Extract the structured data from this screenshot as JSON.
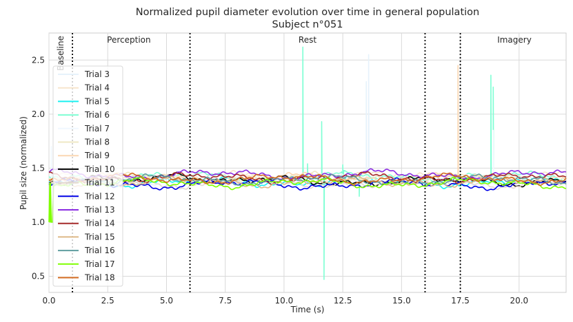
{
  "chart_data": {
    "type": "line",
    "title": "Normalized pupil diameter evolution over time in general population",
    "subtitle": "Subject n°051",
    "xlabel": "Time (s)",
    "ylabel": "Pupil size (normalized)",
    "xlim": [
      0,
      22
    ],
    "ylim": [
      0.35,
      2.75
    ],
    "xticks": [
      0.0,
      2.5,
      5.0,
      7.5,
      10.0,
      12.5,
      15.0,
      17.5,
      20.0
    ],
    "xtick_labels": [
      "0.0",
      "2.5",
      "5.0",
      "7.5",
      "10.0",
      "12.5",
      "15.0",
      "17.5",
      "20.0"
    ],
    "yticks": [
      0.5,
      1.0,
      1.5,
      2.0,
      2.5
    ],
    "ytick_labels": [
      "0.5",
      "1.0",
      "1.5",
      "2.0",
      "2.5"
    ],
    "grid": true,
    "legend_placement": "left",
    "phase_boundaries": [
      1.0,
      6.0,
      16.0,
      17.5
    ],
    "phase_labels": [
      {
        "text": "Baseline",
        "x": 0.5,
        "rotated": true
      },
      {
        "text": "Perception",
        "x": 3.4
      },
      {
        "text": "Rest",
        "x": 11.0
      },
      {
        "text": "Imagery",
        "x": 19.8
      }
    ],
    "series": [
      {
        "name": "Trial 3",
        "color": "#e6f2fb",
        "base": 1.38,
        "offset": 0.3,
        "spikes": [
          [
            13.5,
            2.3
          ],
          [
            13.6,
            2.55
          ]
        ]
      },
      {
        "name": "Trial 4",
        "color": "#f7e5cc",
        "base": 1.42,
        "offset": 1.1,
        "spikes": []
      },
      {
        "name": "Trial 5",
        "color": "#19f0f0",
        "base": 1.37,
        "offset": 2.0,
        "spikes": []
      },
      {
        "name": "Trial 6",
        "color": "#7fffd4",
        "base": 1.42,
        "offset": 2.7,
        "spikes": [
          [
            10.8,
            2.62
          ],
          [
            11.0,
            1.54
          ],
          [
            11.6,
            1.93
          ],
          [
            11.7,
            0.47
          ],
          [
            12.5,
            1.53
          ],
          [
            13.2,
            1.24
          ],
          [
            18.8,
            2.36
          ],
          [
            18.9,
            2.25
          ]
        ]
      },
      {
        "name": "Trial 7",
        "color": "#f0f8ff",
        "base": 1.4,
        "offset": 3.3,
        "spikes": [
          [
            18.9,
            1.85
          ],
          [
            0.1,
            1.7
          ]
        ]
      },
      {
        "name": "Trial 8",
        "color": "#efe8c4",
        "base": 1.41,
        "offset": 4.1,
        "spikes": []
      },
      {
        "name": "Trial 9",
        "color": "#fbd7b2",
        "base": 1.41,
        "offset": 4.9,
        "spikes": [
          [
            17.4,
            2.45
          ]
        ]
      },
      {
        "name": "Trial 10",
        "color": "#000000",
        "base": 1.38,
        "offset": 5.6,
        "spikes": []
      },
      {
        "name": "Trial 11",
        "color": "#e6d9d2",
        "base": 1.36,
        "offset": 6.2,
        "spikes": []
      },
      {
        "name": "Trial 12",
        "color": "#0000e6",
        "base": 1.35,
        "offset": 7.0,
        "spikes": []
      },
      {
        "name": "Trial 13",
        "color": "#8a2be2",
        "base": 1.44,
        "offset": 7.8,
        "spikes": []
      },
      {
        "name": "Trial 14",
        "color": "#a52a2a",
        "base": 1.41,
        "offset": 8.4,
        "spikes": []
      },
      {
        "name": "Trial 15",
        "color": "#deb887",
        "base": 1.37,
        "offset": 9.1,
        "spikes": []
      },
      {
        "name": "Trial 16",
        "color": "#5f9ea0",
        "base": 1.39,
        "offset": 9.9,
        "spikes": []
      },
      {
        "name": "Trial 17",
        "color": "#7fff00",
        "base": 1.36,
        "offset": 10.6,
        "spikes": [
          [
            0.05,
            1.0
          ]
        ]
      },
      {
        "name": "Trial 18",
        "color": "#d2691e",
        "base": 1.4,
        "offset": 11.3,
        "spikes": []
      }
    ]
  }
}
